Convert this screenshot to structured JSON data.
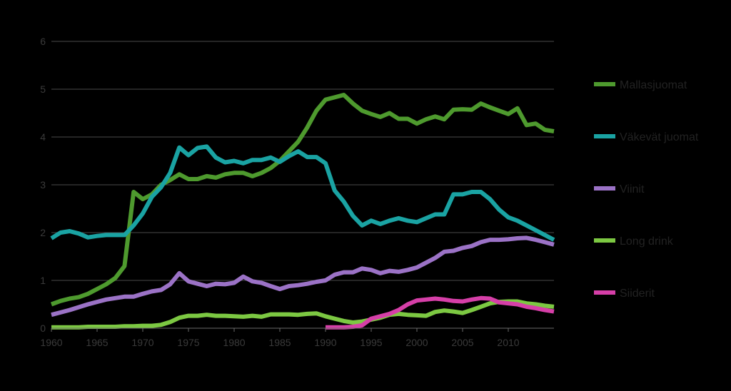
{
  "chart_data": {
    "type": "line",
    "title": "",
    "xlabel": "",
    "ylabel": "",
    "xlim": [
      1960,
      2015
    ],
    "ylim": [
      0,
      6
    ],
    "grid": "horizontal",
    "legend_position": "right",
    "x_ticks": [
      "1960",
      "1965",
      "1970",
      "1975",
      "1980",
      "1985",
      "1990",
      "1995",
      "2000",
      "2005",
      "2010"
    ],
    "y_ticks": [
      "0",
      "1",
      "2",
      "3",
      "4",
      "5",
      "6"
    ],
    "series": [
      {
        "name": "Mallasjuomat",
        "color": "#4e9a2e",
        "x": [
          1960,
          1961,
          1962,
          1963,
          1964,
          1965,
          1966,
          1967,
          1968,
          1969,
          1970,
          1971,
          1972,
          1973,
          1974,
          1975,
          1976,
          1977,
          1978,
          1979,
          1980,
          1981,
          1982,
          1983,
          1984,
          1985,
          1986,
          1987,
          1988,
          1989,
          1990,
          1991,
          1992,
          1993,
          1994,
          1995,
          1996,
          1997,
          1998,
          1999,
          2000,
          2001,
          2002,
          2003,
          2004,
          2005,
          2006,
          2007,
          2008,
          2009,
          2010,
          2011,
          2012,
          2013,
          2014,
          2015
        ],
        "values": [
          0.5,
          0.57,
          0.62,
          0.65,
          0.72,
          0.82,
          0.92,
          1.05,
          1.3,
          2.85,
          2.7,
          2.8,
          3.0,
          3.1,
          3.22,
          3.12,
          3.12,
          3.18,
          3.15,
          3.22,
          3.25,
          3.25,
          3.18,
          3.25,
          3.35,
          3.5,
          3.7,
          3.9,
          4.2,
          4.55,
          4.78,
          4.83,
          4.88,
          4.7,
          4.55,
          4.48,
          4.42,
          4.5,
          4.38,
          4.38,
          4.28,
          4.37,
          4.43,
          4.37,
          4.57,
          4.58,
          4.57,
          4.7,
          4.62,
          4.55,
          4.48,
          4.6,
          4.25,
          4.28,
          4.15,
          4.12
        ]
      },
      {
        "name": "Väkevät juomat",
        "color": "#1aa3a3",
        "x": [
          1960,
          1961,
          1962,
          1963,
          1964,
          1965,
          1966,
          1967,
          1968,
          1969,
          1970,
          1971,
          1972,
          1973,
          1974,
          1975,
          1976,
          1977,
          1978,
          1979,
          1980,
          1981,
          1982,
          1983,
          1984,
          1985,
          1986,
          1987,
          1988,
          1989,
          1990,
          1991,
          1992,
          1993,
          1994,
          1995,
          1996,
          1997,
          1998,
          1999,
          2000,
          2001,
          2002,
          2003,
          2004,
          2005,
          2006,
          2007,
          2008,
          2009,
          2010,
          2011,
          2012,
          2013,
          2014,
          2015
        ],
        "values": [
          1.88,
          2.0,
          2.03,
          1.98,
          1.9,
          1.93,
          1.95,
          1.95,
          1.95,
          2.15,
          2.4,
          2.75,
          2.95,
          3.25,
          3.78,
          3.62,
          3.77,
          3.8,
          3.57,
          3.47,
          3.5,
          3.45,
          3.52,
          3.52,
          3.57,
          3.48,
          3.6,
          3.7,
          3.58,
          3.58,
          3.45,
          2.88,
          2.65,
          2.35,
          2.15,
          2.25,
          2.18,
          2.25,
          2.3,
          2.25,
          2.22,
          2.3,
          2.38,
          2.38,
          2.8,
          2.8,
          2.85,
          2.85,
          2.7,
          2.48,
          2.32,
          2.25,
          2.15,
          2.05,
          1.95,
          1.85
        ]
      },
      {
        "name": "Viinit",
        "color": "#9b72c6",
        "x": [
          1960,
          1961,
          1962,
          1963,
          1964,
          1965,
          1966,
          1967,
          1968,
          1969,
          1970,
          1971,
          1972,
          1973,
          1974,
          1975,
          1976,
          1977,
          1978,
          1979,
          1980,
          1981,
          1982,
          1983,
          1984,
          1985,
          1986,
          1987,
          1988,
          1989,
          1990,
          1991,
          1992,
          1993,
          1994,
          1995,
          1996,
          1997,
          1998,
          1999,
          2000,
          2001,
          2002,
          2003,
          2004,
          2005,
          2006,
          2007,
          2008,
          2009,
          2010,
          2011,
          2012,
          2013,
          2014,
          2015
        ],
        "values": [
          0.28,
          0.33,
          0.38,
          0.44,
          0.5,
          0.55,
          0.6,
          0.63,
          0.66,
          0.66,
          0.72,
          0.77,
          0.8,
          0.92,
          1.15,
          0.98,
          0.93,
          0.88,
          0.93,
          0.92,
          0.95,
          1.08,
          0.98,
          0.95,
          0.88,
          0.82,
          0.88,
          0.9,
          0.93,
          0.97,
          1.0,
          1.12,
          1.17,
          1.17,
          1.25,
          1.22,
          1.15,
          1.2,
          1.18,
          1.22,
          1.27,
          1.37,
          1.47,
          1.6,
          1.62,
          1.68,
          1.72,
          1.8,
          1.85,
          1.85,
          1.86,
          1.88,
          1.89,
          1.85,
          1.8,
          1.75
        ]
      },
      {
        "name": "Long drink",
        "color": "#7cc842",
        "x": [
          1960,
          1961,
          1962,
          1963,
          1964,
          1965,
          1966,
          1967,
          1968,
          1969,
          1970,
          1971,
          1972,
          1973,
          1974,
          1975,
          1976,
          1977,
          1978,
          1979,
          1980,
          1981,
          1982,
          1983,
          1984,
          1985,
          1986,
          1987,
          1988,
          1989,
          1990,
          1991,
          1992,
          1993,
          1994,
          1995,
          1996,
          1997,
          1998,
          1999,
          2000,
          2001,
          2002,
          2003,
          2004,
          2005,
          2006,
          2007,
          2008,
          2009,
          2010,
          2011,
          2012,
          2013,
          2014,
          2015
        ],
        "values": [
          0.02,
          0.02,
          0.02,
          0.02,
          0.03,
          0.03,
          0.03,
          0.03,
          0.04,
          0.04,
          0.05,
          0.05,
          0.07,
          0.13,
          0.22,
          0.26,
          0.26,
          0.28,
          0.26,
          0.26,
          0.25,
          0.24,
          0.26,
          0.24,
          0.29,
          0.29,
          0.29,
          0.28,
          0.3,
          0.31,
          0.25,
          0.2,
          0.15,
          0.12,
          0.14,
          0.18,
          0.22,
          0.28,
          0.3,
          0.28,
          0.27,
          0.26,
          0.34,
          0.37,
          0.35,
          0.32,
          0.38,
          0.45,
          0.52,
          0.55,
          0.56,
          0.56,
          0.52,
          0.5,
          0.47,
          0.45
        ]
      },
      {
        "name": "Siiderit",
        "color": "#d63fa8",
        "x": [
          1990,
          1991,
          1992,
          1993,
          1994,
          1995,
          1996,
          1997,
          1998,
          1999,
          2000,
          2001,
          2002,
          2003,
          2004,
          2005,
          2006,
          2007,
          2008,
          2009,
          2010,
          2011,
          2012,
          2013,
          2014,
          2015
        ],
        "values": [
          0.02,
          0.02,
          0.02,
          0.03,
          0.06,
          0.2,
          0.25,
          0.3,
          0.38,
          0.5,
          0.58,
          0.6,
          0.62,
          0.6,
          0.57,
          0.56,
          0.6,
          0.63,
          0.62,
          0.54,
          0.52,
          0.5,
          0.45,
          0.42,
          0.38,
          0.35
        ]
      }
    ]
  }
}
